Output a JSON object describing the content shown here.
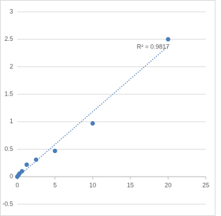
{
  "chart_data": {
    "type": "scatter",
    "x": [
      0,
      0.156,
      0.312,
      0.625,
      1.25,
      2.5,
      5,
      10,
      20
    ],
    "series": [
      {
        "color": "#4a7ebb",
        "values": [
          0.0,
          0.03,
          0.06,
          0.1,
          0.22,
          0.31,
          0.47,
          0.97,
          2.5
        ]
      }
    ],
    "xlim": [
      0,
      25
    ],
    "xticks": [
      0,
      5,
      10,
      15,
      20,
      25
    ],
    "ylim": [
      -0.5,
      3
    ],
    "yticks": [
      -0.5,
      0,
      0.5,
      1,
      1.5,
      2,
      2.5,
      3
    ],
    "grid": true,
    "trendline": true,
    "annotation": "R² = 0.9817"
  }
}
